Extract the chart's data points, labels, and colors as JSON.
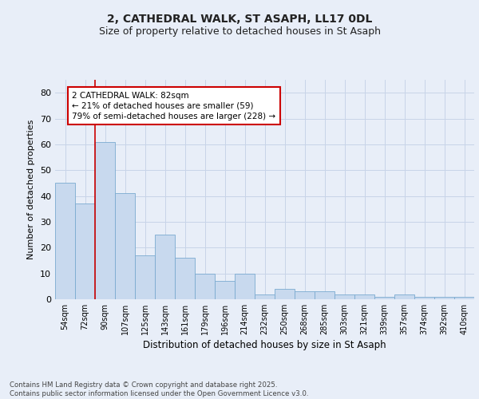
{
  "title1": "2, CATHEDRAL WALK, ST ASAPH, LL17 0DL",
  "title2": "Size of property relative to detached houses in St Asaph",
  "xlabel": "Distribution of detached houses by size in St Asaph",
  "ylabel": "Number of detached properties",
  "categories": [
    "54sqm",
    "72sqm",
    "90sqm",
    "107sqm",
    "125sqm",
    "143sqm",
    "161sqm",
    "179sqm",
    "196sqm",
    "214sqm",
    "232sqm",
    "250sqm",
    "268sqm",
    "285sqm",
    "303sqm",
    "321sqm",
    "339sqm",
    "357sqm",
    "374sqm",
    "392sqm",
    "410sqm"
  ],
  "values": [
    45,
    37,
    61,
    41,
    17,
    25,
    16,
    10,
    7,
    10,
    2,
    4,
    3,
    3,
    2,
    2,
    1,
    2,
    1,
    1,
    1
  ],
  "bar_color": "#c8d9ee",
  "bar_edge_color": "#7aaad0",
  "annotation_text": "2 CATHEDRAL WALK: 82sqm\n← 21% of detached houses are smaller (59)\n79% of semi-detached houses are larger (228) →",
  "annotation_box_color": "#ffffff",
  "annotation_box_edge": "#cc0000",
  "highlight_line_color": "#cc0000",
  "grid_color": "#c8d4e8",
  "bg_color": "#e8eef8",
  "plot_bg_color": "#e8eef8",
  "footer_text": "Contains HM Land Registry data © Crown copyright and database right 2025.\nContains public sector information licensed under the Open Government Licence v3.0.",
  "ylim": [
    0,
    85
  ],
  "yticks": [
    0,
    10,
    20,
    30,
    40,
    50,
    60,
    70,
    80
  ]
}
